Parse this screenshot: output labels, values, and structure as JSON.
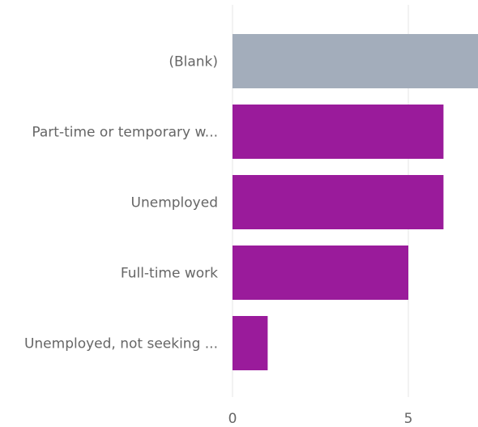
{
  "chart_data": {
    "type": "bar",
    "orientation": "horizontal",
    "categories": [
      "(Blank)",
      "Part-time or temporary w...",
      "Unemployed",
      "Full-time work",
      "Unemployed, not seeking ..."
    ],
    "values": [
      7,
      6,
      6,
      5,
      1
    ],
    "bar_colors": [
      "#a3adbb",
      "#9a1b9b",
      "#9a1b9b",
      "#9a1b9b",
      "#9a1b9b"
    ],
    "x_ticks": [
      0,
      5
    ],
    "xlim": [
      0,
      7
    ],
    "grid": true,
    "title": "",
    "xlabel": "",
    "ylabel": ""
  }
}
